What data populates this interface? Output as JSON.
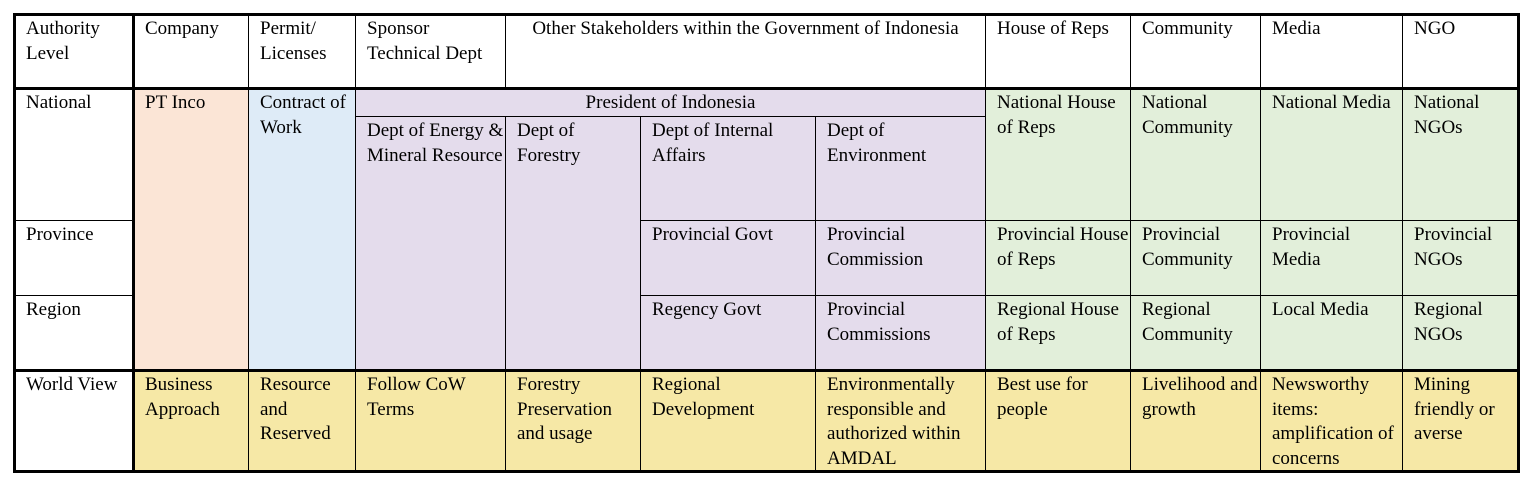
{
  "table": {
    "header": [
      "Authority Level",
      "Company",
      "Permit/ Licenses",
      "Sponsor Technical Dept",
      "Other Stakeholders within the Government of Indonesia",
      "House of Reps",
      "Community",
      "Media",
      "NGO"
    ],
    "levels": [
      "National",
      "Province",
      "Region",
      "World View"
    ],
    "company": "PT Inco",
    "permit": "Contract of Work",
    "president": "President of Indonesia",
    "departments": [
      "Dept of Energy & Mineral Resource",
      "Dept of Forestry",
      "Dept of Internal Affairs",
      "Dept of Environment"
    ],
    "provincial": [
      "Provincial Govt",
      "Provincial Commission"
    ],
    "regional": [
      "Regency Govt",
      "Provincial Commissions"
    ],
    "stakeholders": {
      "national": [
        "National House of Reps",
        "National Community",
        "National Media",
        "National NGOs"
      ],
      "province": [
        "Provincial House of Reps",
        "Provincial Community",
        "Provincial Media",
        "Provincial NGOs"
      ],
      "region": [
        "Regional House of Reps",
        "Regional Community",
        "Local Media",
        "Regional NGOs"
      ]
    },
    "world_view": [
      "Business Approach",
      "Resource and Reserved",
      "Follow CoW Terms",
      "Forestry Preservation and usage",
      "Regional Development",
      "Environmentally responsible and authorized within AMDAL",
      "Best use for people",
      "Livelihood and growth",
      "Newsworthy items: amplification of concerns",
      "Mining friendly or averse"
    ]
  }
}
